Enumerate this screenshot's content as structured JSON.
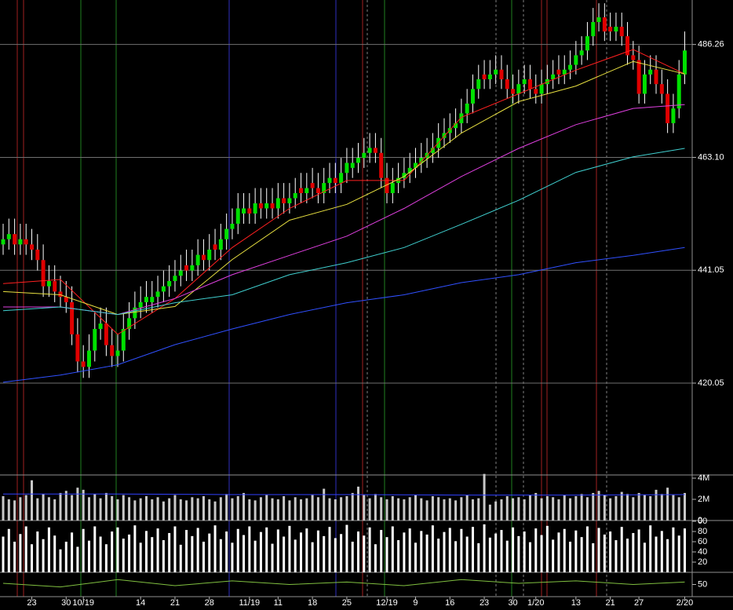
{
  "chart_data": [
    {
      "type": "candlestick",
      "log_scale": true,
      "grid": true,
      "up_color": "#00e000",
      "down_color": "#e00000",
      "wick_color": "#ffffff",
      "xlim": [
        -0.55,
        120.3
      ],
      "ylim": [
        403.7,
        495.7
      ],
      "yticks": [
        420.05,
        441.05,
        {
          "value": 463.1,
          "label": "463.10"
        },
        486.26
      ],
      "open": [
        446,
        447,
        448,
        446,
        447,
        446,
        445,
        443,
        438,
        439,
        437,
        436,
        435,
        429,
        424,
        423,
        426,
        430,
        431,
        427,
        425,
        426,
        430,
        432,
        434,
        435,
        435,
        436,
        437,
        438,
        439,
        440,
        442,
        441,
        442,
        444,
        443,
        446,
        445,
        447,
        449,
        450,
        452,
        453,
        452,
        454,
        453,
        454,
        453,
        455,
        454,
        455,
        457,
        456,
        458,
        457,
        456,
        458,
        459,
        458,
        460,
        461,
        462,
        463,
        464,
        465,
        464,
        459,
        456,
        458,
        459,
        460,
        461,
        462,
        463,
        464,
        465,
        467,
        468,
        469,
        470,
        472,
        474,
        477,
        480,
        479,
        480,
        481,
        479,
        477,
        476,
        478,
        479,
        477,
        476,
        478,
        479,
        481,
        480,
        481,
        482,
        484,
        485,
        488,
        491,
        492,
        490,
        489,
        490,
        488,
        484,
        483,
        476,
        480,
        481,
        478,
        476,
        470,
        473,
        480
      ],
      "high": [
        450,
        451,
        451,
        450,
        450,
        449,
        448,
        446,
        442,
        442,
        440,
        439,
        438,
        432,
        427,
        429,
        433,
        434,
        434,
        430,
        429,
        433,
        435,
        437,
        438,
        439,
        439,
        440,
        441,
        442,
        443,
        444,
        445,
        445,
        447,
        447,
        448,
        449,
        450,
        452,
        453,
        456,
        456,
        456,
        457,
        457,
        457,
        457,
        458,
        458,
        458,
        459,
        460,
        460,
        461,
        460,
        461,
        462,
        462,
        463,
        465,
        465,
        466,
        467,
        468,
        468,
        467,
        462,
        461,
        462,
        463,
        464,
        465,
        466,
        467,
        468,
        470,
        471,
        472,
        473,
        475,
        477,
        480,
        482,
        483,
        483,
        484,
        484,
        482,
        480,
        481,
        482,
        482,
        480,
        481,
        482,
        483,
        484,
        484,
        485,
        487,
        488,
        491,
        494,
        495,
        495,
        493,
        493,
        493,
        491,
        487,
        486,
        483,
        484,
        484,
        481,
        479,
        476,
        483,
        489
      ],
      "low": [
        444,
        445,
        444,
        444,
        444,
        443,
        441,
        436,
        436,
        435,
        434,
        433,
        427,
        422,
        421,
        421,
        424,
        428,
        425,
        423,
        423,
        424,
        428,
        430,
        432,
        433,
        433,
        434,
        435,
        436,
        437,
        438,
        439,
        439,
        440,
        441,
        441,
        443,
        443,
        445,
        447,
        448,
        450,
        450,
        450,
        451,
        451,
        451,
        451,
        452,
        452,
        453,
        454,
        454,
        455,
        454,
        454,
        456,
        456,
        456,
        458,
        459,
        460,
        461,
        462,
        462,
        457,
        454,
        454,
        456,
        457,
        458,
        459,
        460,
        461,
        462,
        463,
        465,
        466,
        467,
        468,
        470,
        472,
        475,
        477,
        477,
        478,
        477,
        475,
        474,
        474,
        476,
        475,
        474,
        474,
        476,
        477,
        478,
        478,
        479,
        480,
        482,
        483,
        486,
        489,
        487,
        487,
        487,
        486,
        482,
        481,
        474,
        474,
        478,
        476,
        474,
        468,
        468,
        471,
        478
      ],
      "close": [
        447,
        448,
        446,
        447,
        446,
        445,
        443,
        438,
        439,
        437,
        436,
        435,
        429,
        424,
        423,
        426,
        430,
        431,
        427,
        425,
        426,
        430,
        432,
        434,
        435,
        436,
        436,
        437,
        438,
        439,
        440,
        441,
        441,
        442,
        444,
        443,
        445,
        445,
        447,
        449,
        450,
        453,
        453,
        452,
        454,
        453,
        454,
        453,
        455,
        454,
        455,
        456,
        456,
        457,
        457,
        456,
        458,
        459,
        458,
        460,
        462,
        462,
        463,
        464,
        465,
        464,
        459,
        456,
        458,
        459,
        460,
        461,
        462,
        463,
        464,
        465,
        467,
        468,
        469,
        470,
        472,
        474,
        477,
        479,
        479,
        480,
        481,
        479,
        477,
        476,
        478,
        479,
        477,
        476,
        478,
        479,
        480,
        480,
        481,
        482,
        484,
        485,
        488,
        491,
        492,
        489,
        489,
        490,
        488,
        484,
        483,
        476,
        480,
        481,
        478,
        476,
        470,
        473,
        480,
        485
      ],
      "series": [
        {
          "color": "#ff2020",
          "x": [
            0,
            10,
            20,
            30,
            40,
            50,
            60,
            70,
            80,
            90,
            100,
            110,
            119
          ],
          "values": [
            438.5,
            439.3,
            429.0,
            435.7,
            445.4,
            453.0,
            458.5,
            458.5,
            471.2,
            476.0,
            480.9,
            485.2,
            480.1
          ]
        },
        {
          "color": "#e8e040",
          "x": [
            0,
            10,
            20,
            30,
            40,
            50,
            60,
            70,
            80,
            90,
            100,
            110,
            119
          ],
          "values": [
            437.0,
            436.4,
            432.7,
            434.2,
            443.1,
            450.7,
            453.8,
            459.3,
            468.0,
            474.4,
            477.6,
            482.7,
            480.1
          ]
        },
        {
          "color": "#e040e0",
          "x": [
            0,
            10,
            20,
            30,
            40,
            50,
            60,
            70,
            80,
            90,
            100,
            110,
            119
          ],
          "values": [
            434.1,
            434.1,
            432.7,
            435.7,
            440.2,
            443.9,
            447.6,
            453.0,
            459.3,
            464.9,
            469.7,
            473.0,
            473.8
          ]
        },
        {
          "color": "#40d0d0",
          "x": [
            0,
            10,
            20,
            30,
            40,
            50,
            60,
            70,
            80,
            90,
            100,
            110,
            119
          ],
          "values": [
            433.4,
            434.1,
            432.7,
            434.9,
            436.4,
            440.2,
            442.5,
            445.4,
            449.9,
            454.6,
            460.1,
            463.2,
            464.9
          ]
        },
        {
          "color": "#3050ff",
          "x": [
            0,
            10,
            20,
            30,
            40,
            50,
            60,
            70,
            80,
            90,
            100,
            110,
            119
          ],
          "values": [
            420.2,
            421.5,
            423.4,
            427.1,
            430.0,
            432.7,
            434.9,
            436.4,
            438.7,
            440.2,
            442.5,
            443.9,
            445.4
          ]
        }
      ]
    },
    {
      "type": "bar",
      "color": "#c8c8c8",
      "xlim": [
        -0.55,
        120.3
      ],
      "ylim": [
        0,
        4.3
      ],
      "yticks": [
        {
          "value": 4,
          "label": "4M"
        },
        {
          "value": 2,
          "label": "2M"
        },
        0
      ],
      "values": [
        2.3,
        2.0,
        1.9,
        2.2,
        2.4,
        3.8,
        2.1,
        2.5,
        2.2,
        2.0,
        2.6,
        2.8,
        2.4,
        3.1,
        2.9,
        2.2,
        2.5,
        2.1,
        2.6,
        2.3,
        2.0,
        2.4,
        2.2,
        1.9,
        2.1,
        2.3,
        2.0,
        2.2,
        1.8,
        2.1,
        2.4,
        2.0,
        1.9,
        2.2,
        2.1,
        2.3,
        2.0,
        1.8,
        2.2,
        2.5,
        2.1,
        2.3,
        2.6,
        2.0,
        1.9,
        2.2,
        2.4,
        2.1,
        2.0,
        2.3,
        1.9,
        2.2,
        2.0,
        2.1,
        2.4,
        2.2,
        3.0,
        2.1,
        2.0,
        2.2,
        2.3,
        2.6,
        3.2,
        2.4,
        2.1,
        2.5,
        2.2,
        2.0,
        2.3,
        2.1,
        2.0,
        2.2,
        2.4,
        2.1,
        1.9,
        2.3,
        2.2,
        2.0,
        2.1,
        1.9,
        2.2,
        2.4,
        2.0,
        2.1,
        4.4,
        1.5,
        1.8,
        2.0,
        2.3,
        2.1,
        2.2,
        2.0,
        2.4,
        2.6,
        2.1,
        2.3,
        2.2,
        2.0,
        2.4,
        2.1,
        2.3,
        2.5,
        2.2,
        2.6,
        2.8,
        2.4,
        2.1,
        2.3,
        2.7,
        2.5,
        2.2,
        2.6,
        2.4,
        2.3,
        2.9,
        2.5,
        3.1,
        2.4,
        2.2,
        2.6
      ],
      "series": [
        {
          "color": "#3040ff",
          "x": [
            0,
            20,
            40,
            60,
            80,
            100,
            119
          ],
          "values": [
            2.5,
            2.5,
            2.45,
            2.45,
            2.4,
            2.4,
            2.45
          ]
        }
      ]
    },
    {
      "type": "bar",
      "color": "#ffffff",
      "xlim": [
        -0.55,
        120.3
      ],
      "ylim": [
        0,
        100
      ],
      "yticks": [
        {
          "value": 100,
          "label": "00"
        },
        80,
        60,
        40,
        20
      ],
      "values": [
        70,
        85,
        60,
        75,
        90,
        55,
        80,
        65,
        88,
        72,
        45,
        60,
        78,
        50,
        85,
        62,
        90,
        70,
        55,
        80,
        88,
        66,
        74,
        92,
        58,
        81,
        69,
        86,
        63,
        77,
        90,
        54,
        83,
        71,
        87,
        60,
        76,
        92,
        65,
        80,
        58,
        85,
        73,
        90,
        62,
        79,
        88,
        56,
        84,
        70,
        91,
        64,
        78,
        86,
        59,
        82,
        71,
        89,
        67,
        75,
        93,
        60,
        80,
        72,
        88,
        55,
        83,
        69,
        90,
        63,
        78,
        86,
        58,
        81,
        74,
        92,
        66,
        79,
        87,
        61,
        85,
        70,
        89,
        57,
        94,
        68,
        76,
        83,
        62,
        88,
        71,
        80,
        59,
        86,
        73,
        91,
        64,
        78,
        85,
        60,
        82,
        69,
        90,
        57,
        87,
        74,
        80,
        63,
        89,
        66,
        77,
        84,
        58,
        92,
        70,
        81,
        65,
        88,
        72,
        86
      ]
    },
    {
      "type": "line",
      "color": "#80c040",
      "xlim": [
        -0.55,
        120.3
      ],
      "ylim": [
        0,
        100
      ],
      "yticks": [
        50
      ],
      "x": [
        0,
        10,
        20,
        30,
        40,
        50,
        60,
        70,
        80,
        90,
        100,
        110,
        119
      ],
      "values": [
        55,
        40,
        70,
        45,
        65,
        50,
        60,
        45,
        70,
        55,
        65,
        50,
        60
      ],
      "xticks": [
        {
          "value": 5,
          "label": "23"
        },
        {
          "value": 11,
          "label": "30"
        },
        {
          "value": 14,
          "label": "10/19"
        },
        {
          "value": 24,
          "label": "14"
        },
        {
          "value": 30,
          "label": "21"
        },
        {
          "value": 36,
          "label": "28"
        },
        {
          "value": 43,
          "label": "11/19"
        },
        {
          "value": 48,
          "label": "11"
        },
        {
          "value": 54,
          "label": "18"
        },
        {
          "value": 60,
          "label": "25"
        },
        {
          "value": 67,
          "label": "12/19"
        },
        {
          "value": 72,
          "label": "9"
        },
        {
          "value": 78,
          "label": "16"
        },
        {
          "value": 84,
          "label": "23"
        },
        {
          "value": 89,
          "label": "30"
        },
        {
          "value": 93,
          "label": "1/20"
        },
        {
          "value": 100,
          "label": "13"
        },
        {
          "value": 106,
          "label": "21"
        },
        {
          "value": 111,
          "label": "27"
        },
        {
          "value": 119,
          "label": "2/20"
        }
      ]
    }
  ]
}
